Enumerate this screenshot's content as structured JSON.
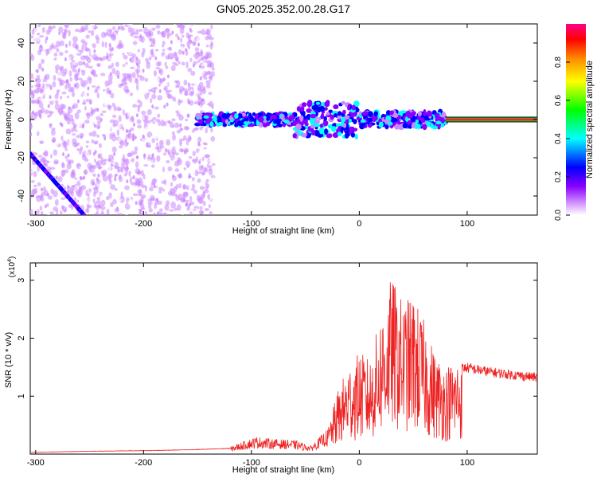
{
  "title": "GN05.2025.352.00.28.G17",
  "colors": {
    "snr_line": "#ee2222",
    "line_band": "#ee2233",
    "axis": "#000000"
  },
  "chart_data": [
    {
      "type": "heatmap",
      "name": "spectrogram",
      "xlabel": "Height of straight line (km)",
      "ylabel": "Frequency (Hz)",
      "xlim": [
        -305,
        165
      ],
      "ylim": [
        -50,
        50
      ],
      "x_ticks": [
        -300,
        -200,
        -100,
        0,
        100
      ],
      "y_ticks": [
        -40,
        -20,
        0,
        20,
        40
      ],
      "colorbar": {
        "label": "Normalized spectral amplitude",
        "range": [
          0,
          1
        ],
        "ticks": [
          "0.0",
          "0.2",
          "0.4",
          "0.6",
          "0.8"
        ],
        "tick_values": [
          0.0,
          0.2,
          0.4,
          0.6,
          0.8
        ],
        "colormap": [
          "#ffffff",
          "#cc88ff",
          "#8800ff",
          "#0000ff",
          "#00ffff",
          "#00ff00",
          "#ffff00",
          "#ff8800",
          "#ff0000",
          "#ff0088"
        ]
      },
      "features": {
        "central_band": {
          "x_from": -150,
          "x_to": 80,
          "freq": 0
        },
        "clean_line": {
          "x_from": 80,
          "x_to": 165,
          "freq": 0,
          "amplitude": 1.0
        },
        "descending_track": {
          "x_from": -305,
          "x_to": -255,
          "freq_start": -18,
          "freq_end": -50
        }
      }
    },
    {
      "type": "line",
      "name": "snr",
      "xlabel": "Height of straight line (km)",
      "ylabel": "SNR (10 * v/v)",
      "scale_label": "(x10",
      "scale_exp": "4",
      "scale_close": ")",
      "xlim": [
        -305,
        165
      ],
      "ylim": [
        0,
        3.3
      ],
      "x_ticks": [
        -300,
        -200,
        -100,
        0,
        100
      ],
      "y_ticks": [
        1,
        2,
        3
      ],
      "series": [
        {
          "name": "SNR",
          "x": [
            -305,
            -250,
            -200,
            -150,
            -120,
            -105,
            -95,
            -80,
            -60,
            -45,
            -30,
            -20,
            -10,
            0,
            10,
            20,
            30,
            40,
            50,
            60,
            70,
            80,
            90,
            100,
            120,
            140,
            165
          ],
          "y": [
            0.03,
            0.05,
            0.06,
            0.08,
            0.1,
            0.2,
            0.25,
            0.22,
            0.2,
            0.12,
            0.35,
            1.0,
            1.4,
            1.6,
            1.5,
            2.2,
            2.8,
            2.4,
            2.5,
            2.1,
            1.6,
            1.4,
            1.5,
            1.52,
            1.45,
            1.4,
            1.35
          ]
        }
      ]
    }
  ]
}
